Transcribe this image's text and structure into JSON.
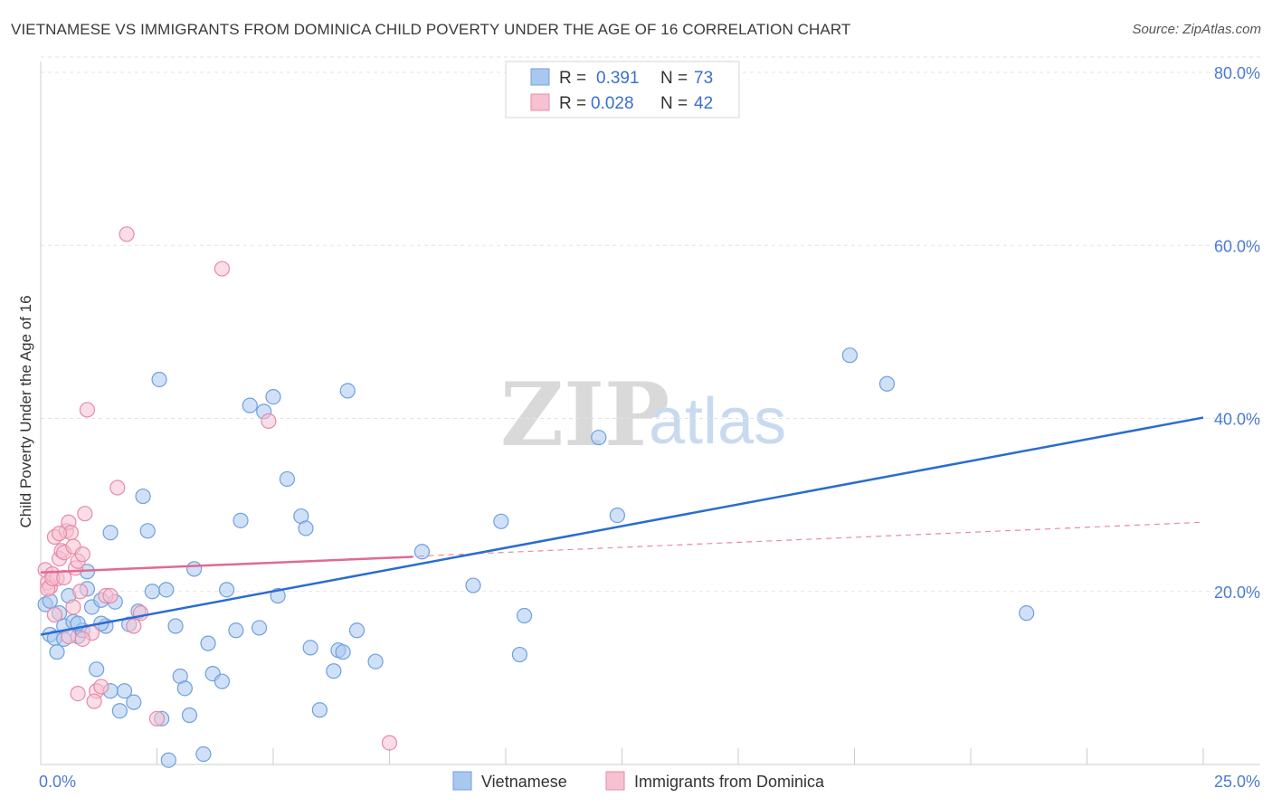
{
  "title": "VIETNAMESE VS IMMIGRANTS FROM DOMINICA CHILD POVERTY UNDER THE AGE OF 16 CORRELATION CHART",
  "source": "Source: ZipAtlas.com",
  "watermark": {
    "zip": "ZIP",
    "atlas": "atlas"
  },
  "chart_data": {
    "type": "scatter",
    "title": "VIETNAMESE VS IMMIGRANTS FROM DOMINICA CHILD POVERTY UNDER THE AGE OF 16 CORRELATION CHART",
    "xlabel": "",
    "ylabel": "Child Poverty Under the Age of 16",
    "xlim": [
      0,
      25
    ],
    "ylim": [
      0,
      80
    ],
    "x_ticks": [
      "0.0%",
      "25.0%"
    ],
    "y_ticks": [
      {
        "value": 20,
        "label": "20.0%"
      },
      {
        "value": 40,
        "label": "40.0%"
      },
      {
        "value": 60,
        "label": "60.0%"
      },
      {
        "value": 80,
        "label": "80.0%"
      }
    ],
    "grid": true,
    "legend_position": "top-center",
    "series": [
      {
        "name": "Vietnamese",
        "R": "0.391",
        "N": "73",
        "color": "#6f9fe0",
        "fill": "#a9c8f0",
        "trend": {
          "x": [
            0,
            25
          ],
          "y": [
            15.0,
            40.1
          ],
          "color": "#2a6cd0"
        },
        "points": [
          [
            0.1,
            18.5
          ],
          [
            0.2,
            15.0
          ],
          [
            0.3,
            14.6
          ],
          [
            0.35,
            13.0
          ],
          [
            0.4,
            17.5
          ],
          [
            0.5,
            16.0
          ],
          [
            0.6,
            19.5
          ],
          [
            0.7,
            16.5
          ],
          [
            0.8,
            14.8
          ],
          [
            0.9,
            15.5
          ],
          [
            1.0,
            22.3
          ],
          [
            1.1,
            18.2
          ],
          [
            1.2,
            11.0
          ],
          [
            1.3,
            19.0
          ],
          [
            1.4,
            16.0
          ],
          [
            1.5,
            26.8
          ],
          [
            1.6,
            18.8
          ],
          [
            1.7,
            6.2
          ],
          [
            1.8,
            8.5
          ],
          [
            1.9,
            16.2
          ],
          [
            2.0,
            7.2
          ],
          [
            2.3,
            27.0
          ],
          [
            2.4,
            20.0
          ],
          [
            2.55,
            44.5
          ],
          [
            2.9,
            16.0
          ],
          [
            3.0,
            10.2
          ],
          [
            3.1,
            8.8
          ],
          [
            3.2,
            5.7
          ],
          [
            3.3,
            22.6
          ],
          [
            3.5,
            1.2
          ],
          [
            3.6,
            14.0
          ],
          [
            3.7,
            10.5
          ],
          [
            3.9,
            9.6
          ],
          [
            4.0,
            20.2
          ],
          [
            4.2,
            15.5
          ],
          [
            4.3,
            28.2
          ],
          [
            4.5,
            41.5
          ],
          [
            4.7,
            15.8
          ],
          [
            4.8,
            40.8
          ],
          [
            5.0,
            42.5
          ],
          [
            5.1,
            19.5
          ],
          [
            5.3,
            33.0
          ],
          [
            5.6,
            28.7
          ],
          [
            5.7,
            27.3
          ],
          [
            5.8,
            13.5
          ],
          [
            6.0,
            6.3
          ],
          [
            6.3,
            10.8
          ],
          [
            6.4,
            13.2
          ],
          [
            6.5,
            13.0
          ],
          [
            6.6,
            43.2
          ],
          [
            6.8,
            15.5
          ],
          [
            7.2,
            11.9
          ],
          [
            1.0,
            20.3
          ],
          [
            2.2,
            31.0
          ],
          [
            2.7,
            20.2
          ],
          [
            1.5,
            8.5
          ],
          [
            0.5,
            14.5
          ],
          [
            0.8,
            16.3
          ],
          [
            1.3,
            16.3
          ],
          [
            2.1,
            17.7
          ],
          [
            2.6,
            5.3
          ],
          [
            2.75,
            0.5
          ],
          [
            8.2,
            24.6
          ],
          [
            9.3,
            20.7
          ],
          [
            9.9,
            28.1
          ],
          [
            10.3,
            12.7
          ],
          [
            10.4,
            17.2
          ],
          [
            12.0,
            37.8
          ],
          [
            12.4,
            28.8
          ],
          [
            17.4,
            47.3
          ],
          [
            18.2,
            44.0
          ],
          [
            21.2,
            17.5
          ],
          [
            0.2,
            18.9
          ]
        ]
      },
      {
        "name": "Immigrants from Dominica",
        "R": "0.028",
        "N": "42",
        "color": "#e88aa8",
        "fill": "#f6c1d1",
        "trend": {
          "x": [
            0,
            8.0
          ],
          "y": [
            22.2,
            24.0
          ],
          "color": "#e06a94"
        },
        "trend_dashed": {
          "x": [
            0,
            25
          ],
          "y": [
            22.2,
            28.0
          ],
          "color": "#e88aa8"
        },
        "points": [
          [
            0.1,
            22.5
          ],
          [
            0.15,
            21.0
          ],
          [
            0.2,
            20.5
          ],
          [
            0.25,
            22.0
          ],
          [
            0.3,
            26.3
          ],
          [
            0.35,
            21.5
          ],
          [
            0.4,
            23.8
          ],
          [
            0.45,
            24.7
          ],
          [
            0.5,
            24.5
          ],
          [
            0.55,
            27.0
          ],
          [
            0.6,
            28.0
          ],
          [
            0.65,
            26.8
          ],
          [
            0.7,
            25.2
          ],
          [
            0.75,
            22.7
          ],
          [
            0.8,
            23.5
          ],
          [
            0.85,
            20.0
          ],
          [
            0.9,
            24.3
          ],
          [
            0.95,
            29.0
          ],
          [
            1.0,
            41.0
          ],
          [
            1.1,
            15.2
          ],
          [
            1.2,
            8.5
          ],
          [
            1.3,
            9.0
          ],
          [
            1.4,
            19.5
          ],
          [
            1.5,
            19.5
          ],
          [
            1.65,
            32.0
          ],
          [
            1.85,
            61.3
          ],
          [
            2.0,
            16.0
          ],
          [
            2.15,
            17.5
          ],
          [
            2.5,
            5.3
          ],
          [
            0.15,
            20.3
          ],
          [
            0.3,
            17.3
          ],
          [
            0.6,
            14.8
          ],
          [
            0.8,
            8.2
          ],
          [
            0.9,
            14.5
          ],
          [
            1.15,
            7.3
          ],
          [
            0.25,
            21.5
          ],
          [
            0.5,
            21.6
          ],
          [
            0.7,
            18.2
          ],
          [
            3.9,
            57.3
          ],
          [
            4.9,
            39.7
          ],
          [
            7.5,
            2.5
          ],
          [
            0.4,
            26.7
          ]
        ]
      }
    ]
  }
}
